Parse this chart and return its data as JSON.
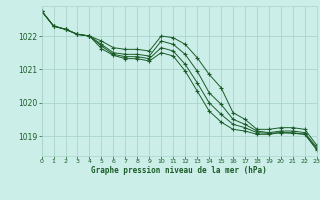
{
  "title": "Graphe pression niveau de la mer (hPa)",
  "bg_color": "#cceee8",
  "grid_color": "#aad4cc",
  "line_color": "#1a5c28",
  "xlim": [
    0,
    23
  ],
  "ylim": [
    1018.4,
    1022.9
  ],
  "yticks": [
    1019,
    1020,
    1021,
    1022
  ],
  "xticks": [
    0,
    1,
    2,
    3,
    4,
    5,
    6,
    7,
    8,
    9,
    10,
    11,
    12,
    13,
    14,
    15,
    16,
    17,
    18,
    19,
    20,
    21,
    22,
    23
  ],
  "series": [
    [
      1022.75,
      1022.3,
      1022.2,
      1022.05,
      1022.0,
      1021.85,
      1021.65,
      1021.6,
      1021.6,
      1021.55,
      1022.0,
      1021.95,
      1021.75,
      1021.35,
      1020.85,
      1020.45,
      1019.7,
      1019.5,
      1019.2,
      1019.2,
      1019.25,
      1019.25,
      1019.2,
      1018.72
    ],
    [
      1022.75,
      1022.3,
      1022.2,
      1022.05,
      1022.0,
      1021.75,
      1021.5,
      1021.45,
      1021.45,
      1021.4,
      1021.85,
      1021.75,
      1021.45,
      1020.95,
      1020.3,
      1019.95,
      1019.5,
      1019.35,
      1019.15,
      1019.1,
      1019.15,
      1019.15,
      1019.1,
      1018.65
    ],
    [
      1022.75,
      1022.3,
      1022.2,
      1022.05,
      1022.0,
      1021.7,
      1021.45,
      1021.38,
      1021.38,
      1021.32,
      1021.65,
      1021.55,
      1021.15,
      1020.6,
      1020.0,
      1019.65,
      1019.35,
      1019.25,
      1019.1,
      1019.08,
      1019.1,
      1019.1,
      1019.05,
      1018.62
    ],
    [
      1022.75,
      1022.3,
      1022.2,
      1022.05,
      1022.0,
      1021.62,
      1021.42,
      1021.32,
      1021.32,
      1021.25,
      1021.5,
      1021.4,
      1020.95,
      1020.35,
      1019.75,
      1019.42,
      1019.2,
      1019.15,
      1019.05,
      1019.05,
      1019.1,
      1019.08,
      1019.05,
      1018.58
    ]
  ]
}
